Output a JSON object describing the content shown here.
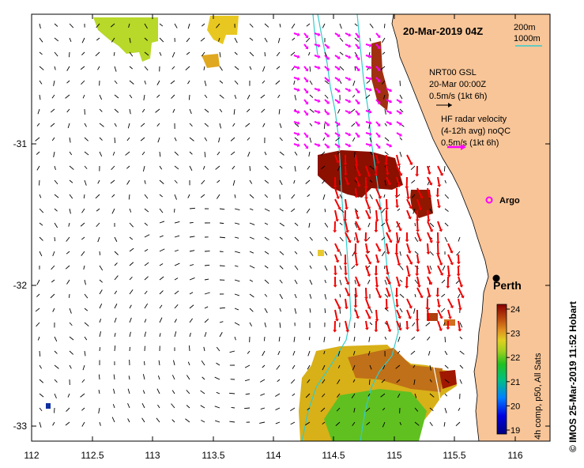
{
  "map": {
    "title": "20-Mar-2019 04Z",
    "x_ticks": [
      "112",
      "112.5",
      "113",
      "113.5",
      "114",
      "114.5",
      "115",
      "115.5",
      "116"
    ],
    "y_ticks": [
      "-31",
      "-32",
      "-33"
    ],
    "lon_range": [
      112.0,
      116.3
    ],
    "lat_range": [
      -33.1,
      -30.1
    ]
  },
  "bathymetry_legend": {
    "label_200": "200m",
    "label_1000": "1000m",
    "color_200": "#ffffff",
    "color_1000": "#33cccc"
  },
  "model_legend": {
    "line1": "NRT00 GSL",
    "line2": "20-Mar 00:00Z",
    "line3": "0.5m/s (1kt 6h)",
    "color": "#000000"
  },
  "radar_legend": {
    "line1": "HF radar velocity",
    "line2": "(4-12h avg) noQC",
    "line3": "0.5m/s (1kt 6h)",
    "color": "#ff00ff"
  },
  "places": {
    "argo_label": "Argo",
    "perth_label": "Perth"
  },
  "colorbar": {
    "ticks": [
      "24",
      "23",
      "22",
      "21",
      "20",
      "19"
    ],
    "min": 19,
    "max": 24,
    "label": "4h comp, p50, All Sats"
  },
  "credit": "© IMOS 25-Mar-2019 11:52 Hobart",
  "colors": {
    "land": "#f8c598",
    "isobath": "#33cccc",
    "radar_north": "#ff00ff",
    "radar_south": "#ee0000"
  }
}
